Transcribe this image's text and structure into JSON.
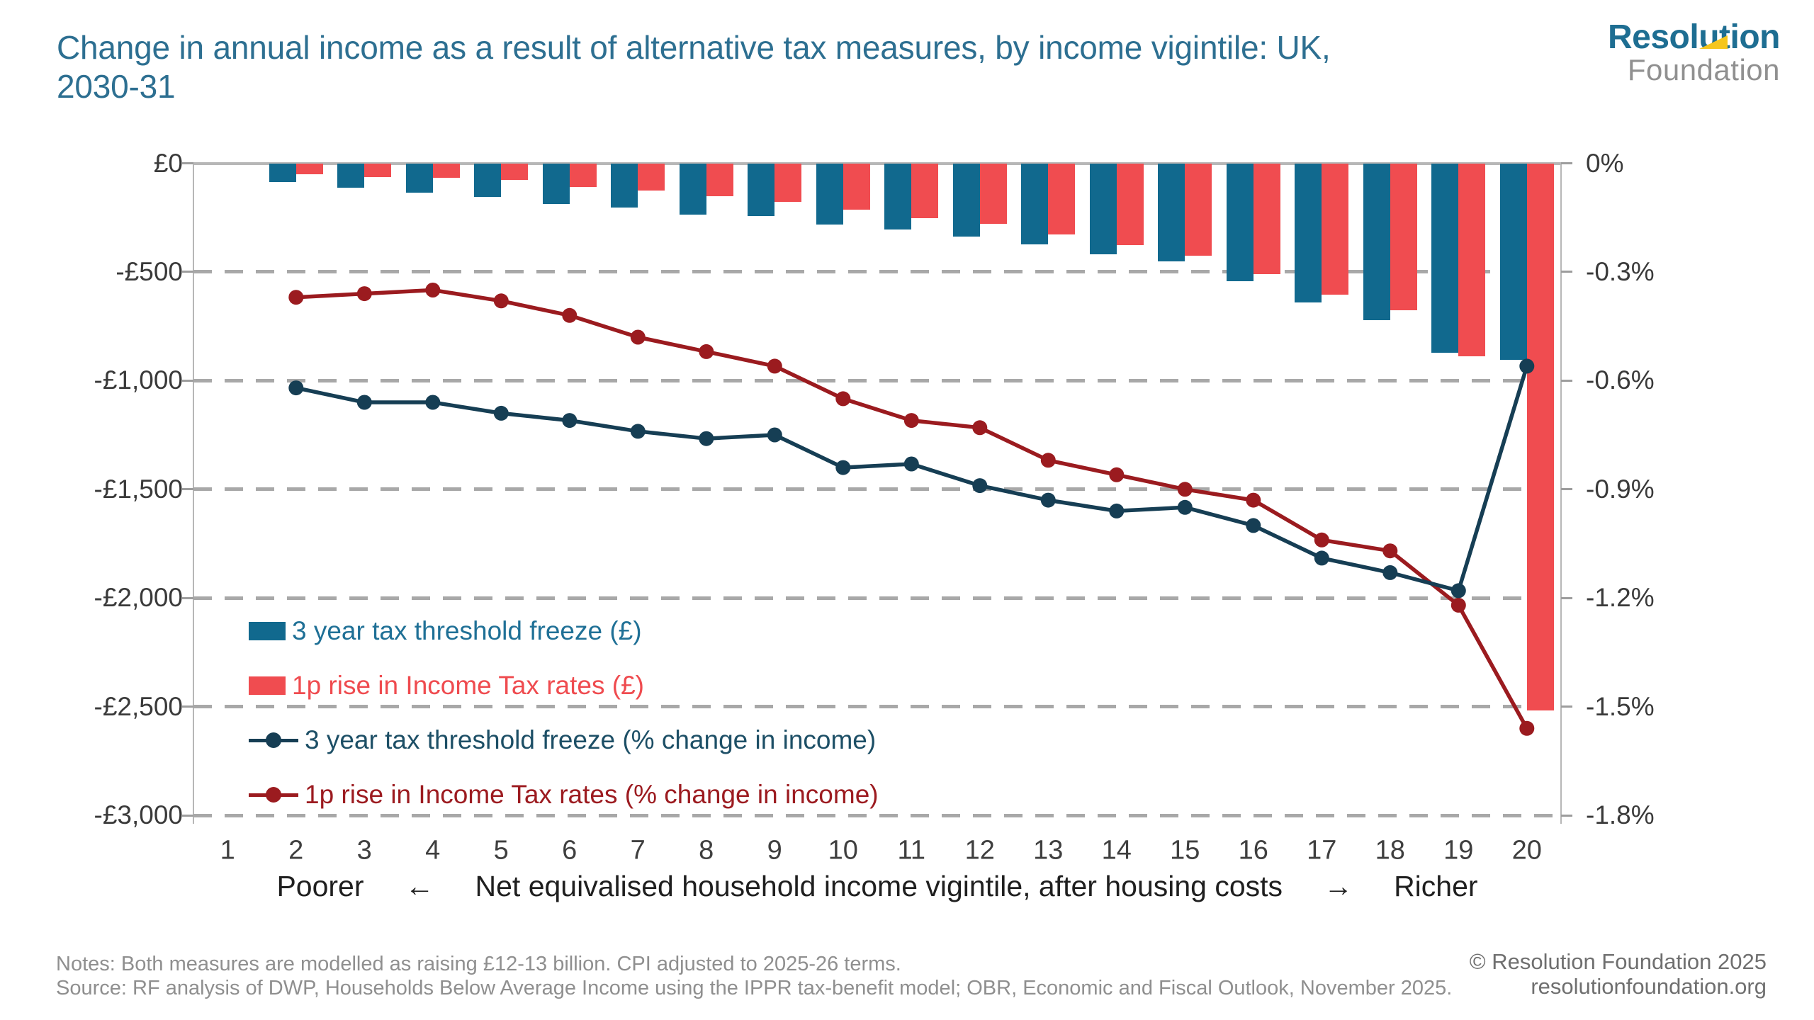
{
  "header": {
    "title_line1": "Change in annual income as a result of alternative tax measures, by income vigintile: UK,",
    "title_line2": "2030-31",
    "title_color": "#2d6f91",
    "logo": {
      "word1": "Resolution",
      "word2": "Foundation",
      "word1_color": "#1e6e92",
      "word2_color": "#909090",
      "flag_color": "#f5c61d"
    }
  },
  "chart_data": {
    "type": "bar+line",
    "categories": [
      1,
      2,
      3,
      4,
      5,
      6,
      7,
      8,
      9,
      10,
      11,
      12,
      13,
      14,
      15,
      16,
      17,
      18,
      19,
      20
    ],
    "series": [
      {
        "name": "3 year tax threshold freeze (£)",
        "type": "bar",
        "axis": "left",
        "color": "#11698e",
        "values": [
          null,
          -85,
          -114,
          -135,
          -154,
          -187,
          -203,
          -235,
          -243,
          -283,
          -306,
          -337,
          -373,
          -419,
          -451,
          -542,
          -639,
          -721,
          -873,
          -906
        ]
      },
      {
        "name": "1p rise in Income Tax rates (£)",
        "type": "bar",
        "axis": "left",
        "color": "#f04c50",
        "values": [
          null,
          -52,
          -62,
          -68,
          -78,
          -110,
          -127,
          -153,
          -178,
          -214,
          -251,
          -279,
          -329,
          -376,
          -424,
          -511,
          -604,
          -677,
          -889,
          -2518
        ]
      },
      {
        "name": "3 year tax threshold freeze (% change in income)",
        "type": "line",
        "axis": "right",
        "color": "#163e54",
        "values": [
          null,
          -0.62,
          -0.66,
          -0.66,
          -0.69,
          -0.71,
          -0.74,
          -0.76,
          -0.75,
          -0.84,
          -0.83,
          -0.89,
          -0.93,
          -0.96,
          -0.95,
          -1.0,
          -1.09,
          -1.13,
          -1.18,
          -0.56
        ]
      },
      {
        "name": "1p rise in Income Tax rates (% change in income)",
        "type": "line",
        "axis": "right",
        "color": "#9b1b1f",
        "values": [
          null,
          -0.37,
          -0.36,
          -0.35,
          -0.38,
          -0.42,
          -0.48,
          -0.52,
          -0.56,
          -0.65,
          -0.71,
          -0.73,
          -0.82,
          -0.86,
          -0.9,
          -0.93,
          -1.04,
          -1.07,
          -1.22,
          -1.56
        ]
      }
    ],
    "left_axis": {
      "ticks": [
        "£0",
        "-£500",
        "-£1,000",
        "-£1,500",
        "-£2,000",
        "-£2,500",
        "-£3,000"
      ],
      "range": [
        0,
        -3000
      ],
      "gridlines": "dashed"
    },
    "right_axis": {
      "ticks": [
        "0%",
        "-0.3%",
        "-0.6%",
        "-0.9%",
        "-1.2%",
        "-1.5%",
        "-1.8%"
      ],
      "range": [
        0,
        -1.8
      ]
    },
    "x_axis": {
      "labels": [
        "1",
        "2",
        "3",
        "4",
        "5",
        "6",
        "7",
        "8",
        "9",
        "10",
        "11",
        "12",
        "13",
        "14",
        "15",
        "16",
        "17",
        "18",
        "19",
        "20"
      ],
      "caption": {
        "left_word": "Poorer",
        "left_arrow": "←",
        "text": "Net equivalised household income vigintile, after housing costs",
        "right_arrow": "→",
        "right_word": "Richer"
      }
    },
    "legend": {
      "position": "inside-left",
      "items": [
        {
          "label": "3 year tax threshold freeze (£)",
          "marker": "bar",
          "color": "#11698e",
          "text_color": "#1f7096"
        },
        {
          "label": "1p rise in Income Tax rates (£)",
          "marker": "bar",
          "color": "#f04c50",
          "text_color": "#ef4b4f"
        },
        {
          "label": "3 year tax threshold freeze (% change in income)",
          "marker": "line-dot",
          "color": "#163e54",
          "text_color": "#1d4f66"
        },
        {
          "label": "1p rise in Income Tax rates (% change in income)",
          "marker": "line-dot",
          "color": "#9b1b1f",
          "text_color": "#9c1b20"
        }
      ]
    }
  },
  "footer": {
    "notes": "Notes: Both measures are modelled as raising £12-13 billion. CPI adjusted to 2025-26 terms.",
    "source": "Source: RF analysis of DWP, Households Below Average Income using the IPPR tax-benefit model; OBR, Economic and Fiscal Outlook, November 2025.",
    "copyright_line1": "© Resolution Foundation 2025",
    "copyright_line2": "resolutionfoundation.org"
  }
}
